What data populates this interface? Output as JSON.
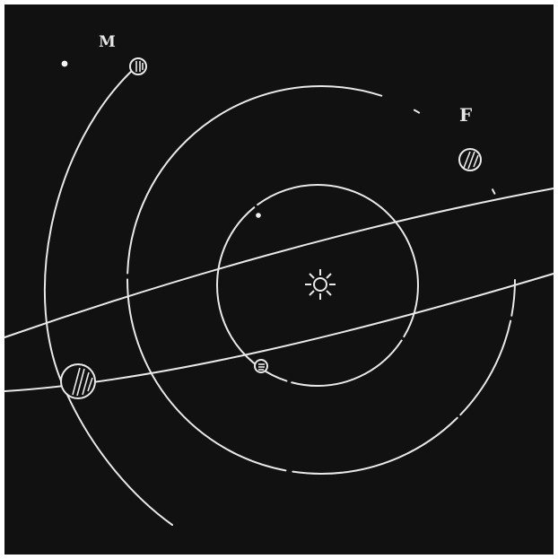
{
  "diagram": {
    "labels": {
      "upper_left": "M",
      "upper_right": "F"
    },
    "colors": {
      "frame": "#ffffff",
      "background": "#111111",
      "ink": "#e9e9e9"
    },
    "symbols": {
      "center": "sun-icon",
      "bodies": [
        "planet-hatched-icon"
      ]
    }
  }
}
